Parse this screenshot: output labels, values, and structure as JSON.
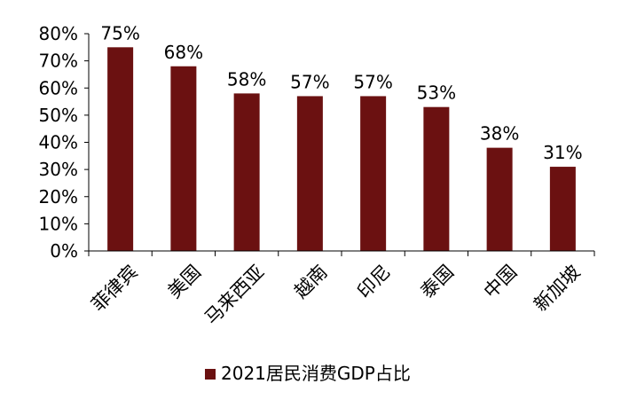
{
  "chart_data": {
    "type": "bar",
    "categories": [
      "菲律宾",
      "美国",
      "马来西亚",
      "越南",
      "印尼",
      "泰国",
      "中国",
      "新加坡"
    ],
    "series": [
      {
        "name": "2021居民消费GDP占比",
        "values": [
          75,
          68,
          58,
          57,
          57,
          53,
          38,
          31
        ],
        "labels": [
          "75%",
          "68%",
          "58%",
          "57%",
          "57%",
          "53%",
          "38%",
          "31%"
        ]
      }
    ],
    "ylim": [
      0,
      80
    ],
    "yticks": [
      "0%",
      "10%",
      "20%",
      "30%",
      "40%",
      "50%",
      "60%",
      "70%",
      "80%"
    ],
    "grid": false,
    "legend_position": "bottom",
    "bar_color": "#6b1111"
  }
}
